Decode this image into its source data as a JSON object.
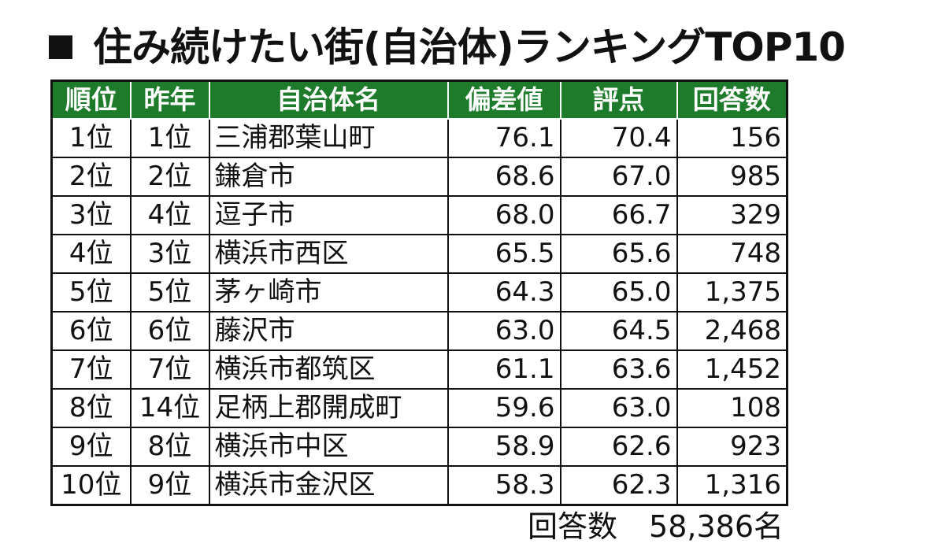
{
  "title": {
    "square": "■",
    "text": "住み続けたい街(自治体)ランキングTOP10"
  },
  "table": {
    "headers": [
      "順位",
      "昨年",
      "自治体名",
      "偏差値",
      "評点",
      "回答数"
    ],
    "rows": [
      [
        "1位",
        "1位",
        "三浦郡葉山町",
        "76.1",
        "70.4",
        "156"
      ],
      [
        "2位",
        "2位",
        "鎌倉市",
        "68.6",
        "67.0",
        "985"
      ],
      [
        "3位",
        "4位",
        "逗子市",
        "68.0",
        "66.7",
        "329"
      ],
      [
        "4位",
        "3位",
        "横浜市西区",
        "65.5",
        "65.6",
        "748"
      ],
      [
        "5位",
        "5位",
        "茅ヶ崎市",
        "64.3",
        "65.0",
        "1,375"
      ],
      [
        "6位",
        "6位",
        "藤沢市",
        "63.0",
        "64.5",
        "2,468"
      ],
      [
        "7位",
        "7位",
        "横浜市都筑区",
        "61.1",
        "63.6",
        "1,452"
      ],
      [
        "8位",
        "14位",
        "足柄上郡開成町",
        "59.6",
        "63.0",
        "108"
      ],
      [
        "9位",
        "8位",
        "横浜市中区",
        "58.9",
        "62.6",
        "923"
      ],
      [
        "10位",
        "9位",
        "横浜市金沢区",
        "58.3",
        "62.3",
        "1,316"
      ]
    ]
  },
  "footer": {
    "label": "回答数",
    "value": "58,386名"
  },
  "colors": {
    "header_bg": "#1e7b2c",
    "header_text": "#ffffff",
    "border": "#111111"
  }
}
